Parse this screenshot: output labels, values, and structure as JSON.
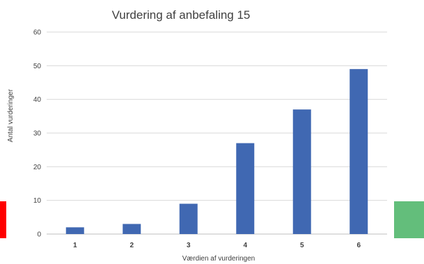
{
  "chart_data": {
    "type": "bar",
    "title": "Vurdering af anbefaling 15",
    "xlabel": "Værdien af vurderingen",
    "ylabel": "Antal vurderinger",
    "categories": [
      "1",
      "2",
      "3",
      "4",
      "5",
      "6"
    ],
    "values": [
      2,
      3,
      9,
      27,
      37,
      49
    ],
    "ylim": [
      0,
      60
    ],
    "yticks": [
      "0",
      "10",
      "20",
      "30",
      "40",
      "50",
      "60"
    ],
    "bar_color": "#4068b2",
    "grid": true,
    "legend": "none"
  },
  "decor": {
    "left_block_color": "#ff0000",
    "right_block_color": "#63be7b"
  }
}
